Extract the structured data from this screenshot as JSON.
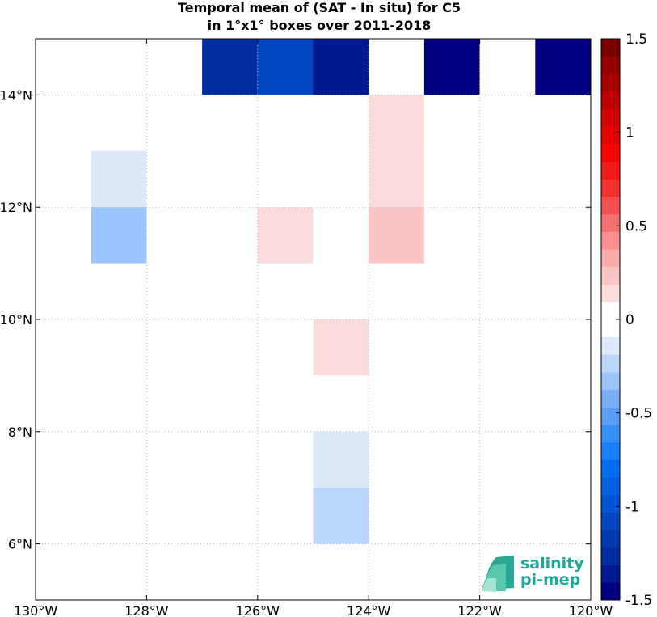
{
  "chart_data": {
    "type": "heatmap",
    "title": "Temporal mean of (SAT - In situ) for C5",
    "subtitle": "in 1°x1° boxes over 2011-2018",
    "xlim": [
      -130,
      -120
    ],
    "ylim": [
      5,
      15
    ],
    "grid": true,
    "x_ticks": [
      {
        "v": -130,
        "label": "130°W"
      },
      {
        "v": -128,
        "label": "128°W"
      },
      {
        "v": -126,
        "label": "126°W"
      },
      {
        "v": -124,
        "label": "124°W"
      },
      {
        "v": -122,
        "label": "122°W"
      },
      {
        "v": -120,
        "label": "120°W"
      }
    ],
    "y_ticks": [
      {
        "v": 6,
        "label": "6°N"
      },
      {
        "v": 8,
        "label": "8°N"
      },
      {
        "v": 10,
        "label": "10°N"
      },
      {
        "v": 12,
        "label": "12°N"
      },
      {
        "v": 14,
        "label": "14°N"
      }
    ],
    "cells": [
      {
        "lon0": -127,
        "lat0": 14,
        "value": -1.3
      },
      {
        "lon0": -126,
        "lat0": 14,
        "value": -1.1
      },
      {
        "lon0": -125,
        "lat0": 14,
        "value": -1.4
      },
      {
        "lon0": -123,
        "lat0": 14,
        "value": -1.5
      },
      {
        "lon0": -121,
        "lat0": 14,
        "value": -1.5
      },
      {
        "lon0": -124,
        "lat0": 13,
        "value": 0.1
      },
      {
        "lon0": -124,
        "lat0": 12,
        "value": 0.1
      },
      {
        "lon0": -129,
        "lat0": 12,
        "value": -0.1
      },
      {
        "lon0": -129,
        "lat0": 11,
        "value": -0.3
      },
      {
        "lon0": -126,
        "lat0": 11,
        "value": 0.1
      },
      {
        "lon0": -124,
        "lat0": 11,
        "value": 0.2
      },
      {
        "lon0": -125,
        "lat0": 9,
        "value": 0.1
      },
      {
        "lon0": -125,
        "lat0": 7,
        "value": -0.1
      },
      {
        "lon0": -125,
        "lat0": 6,
        "value": -0.2
      }
    ],
    "colorbar": {
      "range": [
        -1.5,
        1.5
      ],
      "ticks": [
        {
          "v": 1.5,
          "label": "1.5"
        },
        {
          "v": 1,
          "label": "1"
        },
        {
          "v": 0.5,
          "label": "0.5"
        },
        {
          "v": 0,
          "label": "0"
        },
        {
          "v": -0.5,
          "label": "-0.5"
        },
        {
          "v": -1,
          "label": "-1"
        },
        {
          "v": -1.5,
          "label": "-1.5"
        }
      ],
      "colors": [
        "#000080",
        "#001a90",
        "#002da0",
        "#003bb0",
        "#0047c0",
        "#0055d0",
        "#0062e0",
        "#0070f0",
        "#1a80ff",
        "#3a8ff5",
        "#5a9ff5",
        "#7aaff5",
        "#9ac4fa",
        "#bad6fa",
        "#dbe9fb",
        "#ffffff",
        "#ffffff",
        "#fbdcdc",
        "#fbc4c4",
        "#f9acac",
        "#f79090",
        "#f57070",
        "#f45050",
        "#f33030",
        "#f01a1a",
        "#ff0000",
        "#e80000",
        "#d40000",
        "#c00000",
        "#aa0000",
        "#960000",
        "#7a0000"
      ]
    }
  },
  "logo": {
    "line1": "salinity",
    "line2": "pi-mep"
  }
}
